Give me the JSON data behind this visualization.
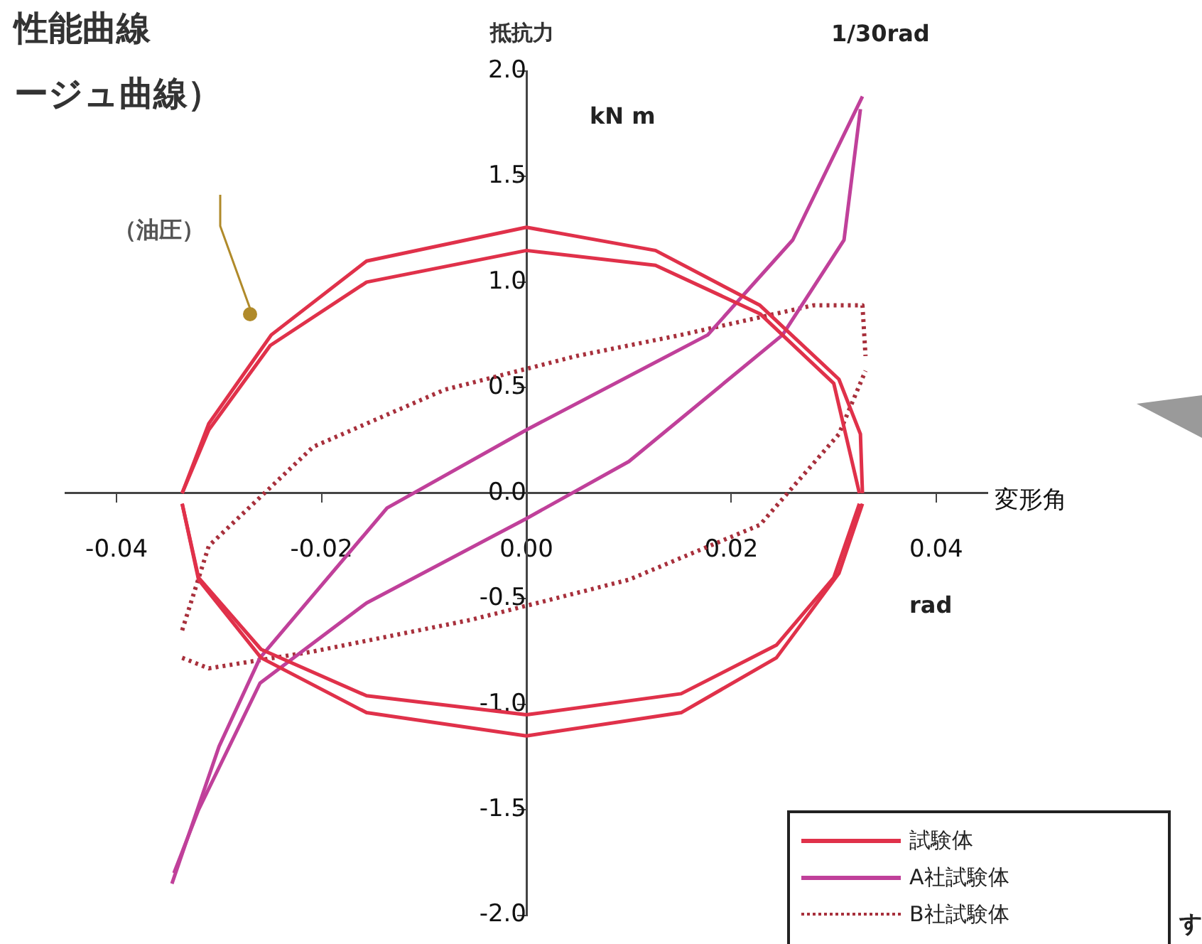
{
  "chart_data": {
    "type": "line",
    "title": "性能曲線",
    "subtitle": "ージュ曲線）",
    "xlabel": "変形角",
    "ylabel": "抵抗力",
    "annotations": [
      "kN m",
      "1/30rad",
      "rad",
      "（油圧）",
      "す"
    ],
    "xlim": [
      -0.045,
      0.045
    ],
    "ylim": [
      -2.0,
      2.0
    ],
    "xticks": [
      {
        "value": -0.04,
        "label": "-0.04"
      },
      {
        "value": -0.02,
        "label": "-0.02"
      },
      {
        "value": 0,
        "label": "0.00"
      },
      {
        "value": 0.02,
        "label": "0.02"
      },
      {
        "value": 0.04,
        "label": "0.04"
      }
    ],
    "yticks": [
      {
        "value": -2,
        "label": "-2.0"
      },
      {
        "value": -1.5,
        "label": "-1.5"
      },
      {
        "value": -1,
        "label": "-1.0"
      },
      {
        "value": -0.5,
        "label": "-0.5"
      },
      {
        "value": 0,
        "label": "0.0"
      },
      {
        "value": 0.5,
        "label": "0.5"
      },
      {
        "value": 1,
        "label": "1.0"
      },
      {
        "value": 1.5,
        "label": "1.5"
      },
      {
        "value": 2,
        "label": "2.0"
      }
    ],
    "grid": false,
    "legend": "bottom right",
    "marker": "none",
    "series": [
      {
        "name": "試験体",
        "color": "#e0314a",
        "line_style": "solid",
        "x": [
          -0.0336,
          -0.031,
          -0.0249,
          -0.0156,
          0,
          0.0126,
          0.0228,
          0.0305,
          0.0326,
          0.0328
        ],
        "values": [
          0,
          0.33,
          0.75,
          1.1,
          1.26,
          1.15,
          0.89,
          0.54,
          0.28,
          0
        ]
      },
      {
        "color": "#e0314a",
        "line_style": "solid",
        "x": [
          -0.0336,
          -0.032,
          -0.0259,
          -0.0156,
          0,
          0.0151,
          0.0244,
          0.0305,
          0.0328
        ],
        "values": [
          -0.05,
          -0.41,
          -0.78,
          -1.04,
          -1.15,
          -1.04,
          -0.78,
          -0.38,
          -0.05
        ]
      },
      {
        "color": "#e0314a",
        "line_style": "solid",
        "x": [
          -0.0336,
          -0.031,
          -0.025,
          -0.0156,
          0,
          0.0126,
          0.0228,
          0.03,
          0.0325
        ],
        "values": [
          0,
          0.3,
          0.7,
          1.0,
          1.15,
          1.08,
          0.85,
          0.52,
          0
        ]
      },
      {
        "color": "#e0314a",
        "line_style": "solid",
        "x": [
          -0.0336,
          -0.032,
          -0.0259,
          -0.0156,
          0,
          0.0151,
          0.0244,
          0.03,
          0.0325
        ],
        "values": [
          -0.05,
          -0.4,
          -0.74,
          -0.96,
          -1.05,
          -0.95,
          -0.72,
          -0.4,
          -0.05
        ]
      },
      {
        "name": "A社試験体",
        "color": "#c0409a",
        "line_style": "solid",
        "x": [
          -0.0346,
          -0.03,
          -0.026,
          -0.0136,
          0,
          0.0177,
          0.026,
          0.0328
        ],
        "values": [
          -1.85,
          -1.2,
          -0.78,
          -0.07,
          0.3,
          0.75,
          1.2,
          1.88
        ]
      },
      {
        "color": "#c0409a",
        "line_style": "solid",
        "x": [
          -0.0344,
          -0.032,
          -0.026,
          -0.0156,
          0,
          0.01,
          0.025,
          0.031,
          0.0326
        ],
        "values": [
          -1.8,
          -1.5,
          -0.9,
          -0.52,
          -0.12,
          0.15,
          0.75,
          1.2,
          1.82
        ]
      },
      {
        "name": "B社試験体",
        "color": "#a8303c",
        "line_style": "dotted",
        "x": [
          -0.0336,
          -0.031,
          -0.0208,
          -0.008,
          0.0049,
          0.0151,
          0.028,
          0.0328,
          0.0331
        ],
        "values": [
          -0.65,
          -0.25,
          0.22,
          0.49,
          0.65,
          0.75,
          0.89,
          0.89,
          0.65
        ]
      },
      {
        "color": "#a8303c",
        "line_style": "dotted",
        "x": [
          -0.0336,
          -0.031,
          -0.0208,
          -0.0054,
          0.01,
          0.0228,
          0.0305,
          0.0331
        ],
        "values": [
          -0.78,
          -0.83,
          -0.75,
          -0.6,
          -0.41,
          -0.15,
          0.28,
          0.58
        ]
      }
    ]
  }
}
